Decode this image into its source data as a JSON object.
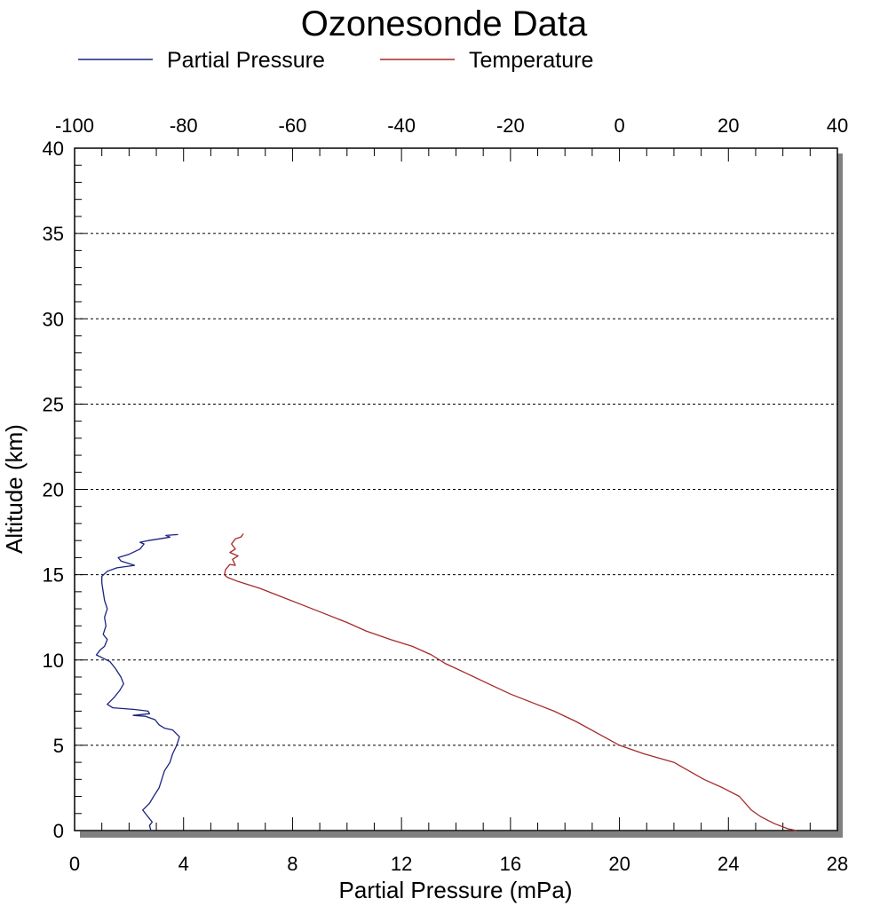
{
  "chart_data": {
    "type": "line",
    "title": "Ozonesonde Data",
    "xlabel": "Partial Pressure (mPa)",
    "ylabel": "Altitude (km)",
    "xlim": [
      0,
      28
    ],
    "x2lim": [
      -100,
      40
    ],
    "ylim": [
      0,
      40
    ],
    "x_ticks": [
      0,
      4,
      8,
      12,
      16,
      20,
      24,
      28
    ],
    "x_tick_labels": [
      "0",
      "4",
      "8",
      "12",
      "16",
      "20",
      "24",
      "28"
    ],
    "x2_ticks": [
      -100,
      -80,
      -60,
      -40,
      -20,
      0,
      20,
      40
    ],
    "x2_tick_labels": [
      "-100",
      "-80",
      "-60",
      "-40",
      "-20",
      "0",
      "20",
      "40"
    ],
    "y_ticks": [
      0,
      5,
      10,
      15,
      20,
      25,
      30,
      35,
      40
    ],
    "y_tick_labels": [
      "0",
      "5",
      "10",
      "15",
      "20",
      "25",
      "30",
      "35",
      "40"
    ],
    "grid": "horizontal dotted",
    "legend_position": "top",
    "series": [
      {
        "name": "Partial Pressure",
        "axis": "bottom",
        "color": "#1a237e",
        "points": [
          [
            2.8,
            0.0
          ],
          [
            2.75,
            0.3
          ],
          [
            2.85,
            0.5
          ],
          [
            2.7,
            0.8
          ],
          [
            2.5,
            1.2
          ],
          [
            2.75,
            1.6
          ],
          [
            2.9,
            2.0
          ],
          [
            3.1,
            2.5
          ],
          [
            3.2,
            3.0
          ],
          [
            3.3,
            3.5
          ],
          [
            3.5,
            4.0
          ],
          [
            3.6,
            4.5
          ],
          [
            3.75,
            5.0
          ],
          [
            3.85,
            5.5
          ],
          [
            3.6,
            5.9
          ],
          [
            3.3,
            6.0
          ],
          [
            3.1,
            6.2
          ],
          [
            2.95,
            6.5
          ],
          [
            2.6,
            6.7
          ],
          [
            2.15,
            6.75
          ],
          [
            2.75,
            6.85
          ],
          [
            2.7,
            7.0
          ],
          [
            2.2,
            7.1
          ],
          [
            1.4,
            7.2
          ],
          [
            1.2,
            7.4
          ],
          [
            1.45,
            7.8
          ],
          [
            1.65,
            8.2
          ],
          [
            1.8,
            8.6
          ],
          [
            1.7,
            9.0
          ],
          [
            1.5,
            9.5
          ],
          [
            1.3,
            9.9
          ],
          [
            1.05,
            10.1
          ],
          [
            0.8,
            10.3
          ],
          [
            0.95,
            10.6
          ],
          [
            1.1,
            10.8
          ],
          [
            1.2,
            11.2
          ],
          [
            1.05,
            11.5
          ],
          [
            1.15,
            12.0
          ],
          [
            1.1,
            12.5
          ],
          [
            1.2,
            13.0
          ],
          [
            1.1,
            13.5
          ],
          [
            1.05,
            14.0
          ],
          [
            1.0,
            14.5
          ],
          [
            1.0,
            14.9
          ],
          [
            1.2,
            15.2
          ],
          [
            1.55,
            15.4
          ],
          [
            2.2,
            15.55
          ],
          [
            1.7,
            15.8
          ],
          [
            1.6,
            16.0
          ],
          [
            2.0,
            16.2
          ],
          [
            2.4,
            16.5
          ],
          [
            2.55,
            16.8
          ],
          [
            2.4,
            16.9
          ],
          [
            2.7,
            17.0
          ],
          [
            3.1,
            17.1
          ],
          [
            3.5,
            17.2
          ],
          [
            3.35,
            17.3
          ],
          [
            3.8,
            17.35
          ]
        ]
      },
      {
        "name": "Temperature",
        "axis": "top",
        "color": "#a52a2a",
        "points": [
          [
            32.5,
            0.0
          ],
          [
            31.0,
            0.1
          ],
          [
            28.5,
            0.4
          ],
          [
            26.0,
            0.8
          ],
          [
            24.2,
            1.2
          ],
          [
            22.0,
            2.0
          ],
          [
            19.0,
            2.5
          ],
          [
            15.5,
            3.0
          ],
          [
            10.0,
            4.0
          ],
          [
            4.5,
            4.5
          ],
          [
            0.0,
            5.0
          ],
          [
            -4.0,
            5.7
          ],
          [
            -8.0,
            6.4
          ],
          [
            -12.0,
            7.0
          ],
          [
            -16.0,
            7.5
          ],
          [
            -20.0,
            8.0
          ],
          [
            -24.0,
            8.6
          ],
          [
            -28.0,
            9.2
          ],
          [
            -32.0,
            9.8
          ],
          [
            -34.5,
            10.3
          ],
          [
            -38.0,
            10.8
          ],
          [
            -42.0,
            11.2
          ],
          [
            -46.5,
            11.7
          ],
          [
            -50.0,
            12.2
          ],
          [
            -54.0,
            12.7
          ],
          [
            -58.0,
            13.2
          ],
          [
            -62.0,
            13.7
          ],
          [
            -66.0,
            14.2
          ],
          [
            -70.0,
            14.6
          ],
          [
            -72.0,
            14.85
          ],
          [
            -72.5,
            15.0
          ],
          [
            -72.3,
            15.3
          ],
          [
            -71.5,
            15.6
          ],
          [
            -70.5,
            15.55
          ],
          [
            -71.0,
            15.9
          ],
          [
            -70.0,
            16.1
          ],
          [
            -71.5,
            16.3
          ],
          [
            -70.5,
            16.5
          ],
          [
            -71.2,
            16.8
          ],
          [
            -70.5,
            17.1
          ],
          [
            -69.5,
            17.2
          ],
          [
            -69.0,
            17.4
          ]
        ]
      }
    ]
  }
}
